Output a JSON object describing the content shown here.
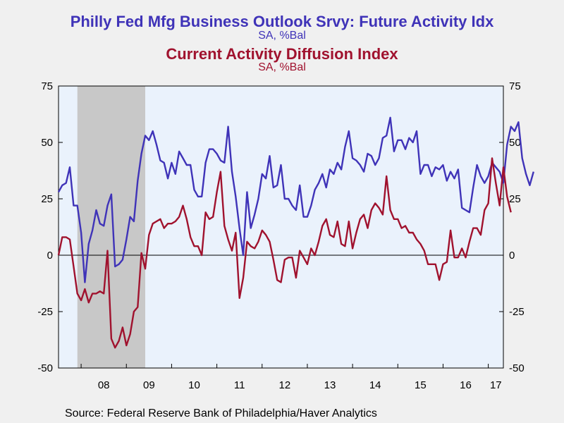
{
  "chart_data": {
    "type": "line",
    "title": "Philly Fed Mfg Business Outlook Srvy: Future Activity Idx",
    "subtitle": "SA, %Bal",
    "title2": "Current Activity Diffusion Index",
    "subtitle2": "SA, %Bal",
    "source": "Source:  Federal Reserve Bank of Philadelphia/Haver Analytics",
    "x_start": "2007-07",
    "x_range": [
      "2007-07",
      "2017-05"
    ],
    "ylim": [
      -50,
      75
    ],
    "yticks": [
      "75",
      "50",
      "25",
      "0",
      "-25",
      "-50"
    ],
    "ytick_values": [
      75,
      50,
      25,
      0,
      -25,
      -50
    ],
    "xtick_labels": [
      "08",
      "09",
      "10",
      "11",
      "12",
      "13",
      "14",
      "15",
      "16",
      "17"
    ],
    "recession_shading": [
      "2007-12",
      "2009-06"
    ],
    "grid": false,
    "colors": {
      "future": "#3f33b8",
      "current": "#a0122e",
      "recession": "#c8c8c8",
      "plot_bg": "#eaf2fc"
    },
    "series": [
      {
        "name": "Future Activity Idx",
        "color": "#3f33b8",
        "values": [
          28,
          31,
          32,
          39,
          22,
          22,
          10,
          -12,
          5,
          11,
          20,
          14,
          13,
          22,
          27,
          -5,
          -4,
          -2,
          7,
          17,
          15,
          33,
          45,
          53,
          51,
          55,
          49,
          42,
          41,
          34,
          41,
          36,
          46,
          43,
          40,
          40,
          29,
          26,
          26,
          41,
          47,
          47,
          45,
          42,
          41,
          57,
          37,
          26,
          12,
          0,
          28,
          12,
          18,
          25,
          36,
          34,
          44,
          30,
          31,
          40,
          25,
          25,
          22,
          20,
          31,
          17,
          17,
          22,
          29,
          32,
          36,
          30,
          38,
          36,
          41,
          38,
          48,
          55,
          43,
          42,
          40,
          37,
          45,
          44,
          40,
          43,
          52,
          53,
          61,
          46,
          51,
          51,
          47,
          52,
          50,
          55,
          36,
          40,
          40,
          35,
          39,
          38,
          40,
          33,
          37,
          34,
          38,
          21,
          20,
          19,
          30,
          40,
          35,
          32,
          35,
          41,
          39,
          37,
          32,
          49,
          57,
          55,
          59,
          43,
          36,
          31,
          37
        ],
        "chart_name": "future-activity-line"
      },
      {
        "name": "Current Activity Diffusion Index",
        "color": "#a0122e",
        "values": [
          0,
          8,
          8,
          7,
          -5,
          -17,
          -20,
          -15,
          -21,
          -17,
          -17,
          -16,
          -17,
          2,
          -37,
          -41,
          -38,
          -32,
          -40,
          -35,
          -25,
          -23,
          1,
          -6,
          9,
          14,
          15,
          16,
          12,
          14,
          14,
          15,
          17,
          22,
          16,
          8,
          4,
          4,
          0,
          19,
          16,
          17,
          28,
          37,
          13,
          7,
          2,
          10,
          -19,
          -10,
          6,
          4,
          3,
          6,
          11,
          9,
          6,
          -2,
          -11,
          -12,
          -2,
          -1,
          -1,
          -10,
          2,
          -1,
          -4,
          3,
          0,
          6,
          13,
          16,
          9,
          8,
          15,
          5,
          4,
          15,
          3,
          10,
          16,
          18,
          12,
          20,
          23,
          21,
          18,
          35,
          20,
          16,
          16,
          12,
          13,
          10,
          10,
          7,
          5,
          2,
          -4,
          -4,
          -4,
          -11,
          -4,
          -3,
          11,
          -1,
          -1,
          3,
          -1,
          6,
          12,
          12,
          9,
          20,
          23,
          43,
          32,
          22,
          39,
          26,
          19
        ],
        "chart_name": "current-activity-line"
      }
    ]
  }
}
